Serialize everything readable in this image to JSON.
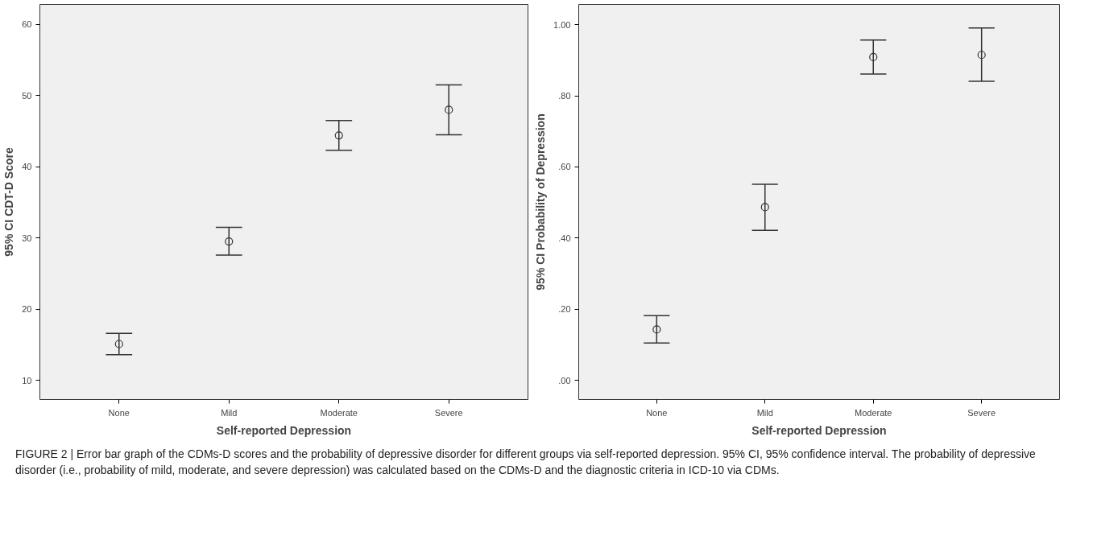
{
  "chart_data": [
    {
      "type": "scatter",
      "xlabel": "Self-reported Depression",
      "ylabel": "95% CI CDT-D Score",
      "categories": [
        "None",
        "Mild",
        "Moderate",
        "Severe"
      ],
      "values": [
        15.1,
        29.5,
        44.4,
        48.0
      ],
      "errors": [
        [
          13.6,
          16.6
        ],
        [
          27.6,
          31.5
        ],
        [
          42.3,
          46.5
        ],
        [
          44.5,
          51.5
        ]
      ],
      "color": "#333333",
      "marker": "circle",
      "grid": false,
      "ylim": [
        7.3,
        62.8
      ],
      "yticks": [
        10,
        20,
        30,
        40,
        50,
        60
      ],
      "annotations": [
        "FIGURE 2 | Error bar graph of the CDMs-D scores and the probability of depressive disorder for different groups via self-reported depression. 95% CI, 95% confidence interval. The probability of depressive disorder (i.e., probability of mild, moderate, and severe depression) was calculated based on the CDMs-D and the diagnostic criteria in ICD-10 via CDMs."
      ]
    },
    {
      "type": "scatter",
      "xlabel": "Self-reported Depression",
      "ylabel": "95% CI Probability of Depression",
      "categories": [
        "None",
        "Mild",
        "Moderate",
        "Severe"
      ],
      "values": [
        0.143,
        0.487,
        0.909,
        0.915
      ],
      "errors": [
        [
          0.105,
          0.182
        ],
        [
          0.422,
          0.551
        ],
        [
          0.861,
          0.957
        ],
        [
          0.841,
          0.991
        ]
      ],
      "color": "#333333",
      "marker": "circle",
      "grid": false,
      "ylim": [
        -0.054,
        1.057
      ],
      "yticks": [
        {
          "value": 0,
          "label": ".00"
        },
        {
          "value": 0.2,
          "label": ".20"
        },
        {
          "value": 0.4,
          "label": ".40"
        },
        {
          "value": 0.6,
          "label": ".60"
        },
        {
          "value": 0.8,
          "label": ".80"
        },
        {
          "value": 1,
          "label": "1.00"
        }
      ]
    }
  ]
}
